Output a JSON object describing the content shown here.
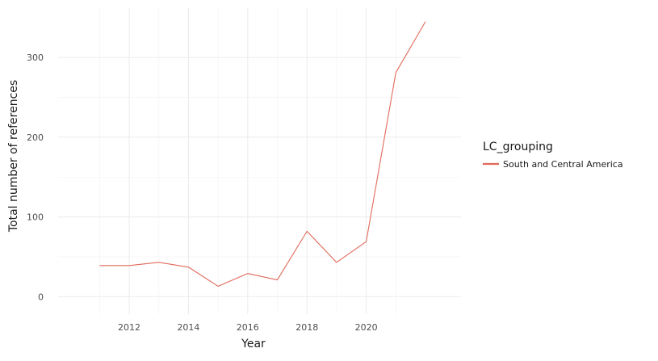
{
  "chart_data": {
    "type": "line",
    "title": "",
    "xlabel": "Year",
    "ylabel": "Total number of references",
    "x": [
      2011,
      2012,
      2013,
      2014,
      2015,
      2016,
      2017,
      2018,
      2019,
      2020,
      2021,
      2022
    ],
    "series": [
      {
        "name": "South and Central America",
        "color": "#E16A5B",
        "values": [
          39,
          39,
          43,
          37,
          13,
          29,
          21,
          82,
          43,
          69,
          281,
          345
        ]
      }
    ],
    "xlim": [
      2009.6,
      2023.2
    ],
    "ylim": [
      -22,
      362
    ],
    "x_ticks": [
      2012,
      2014,
      2016,
      2018,
      2020
    ],
    "y_ticks": [
      0,
      100,
      200,
      300
    ],
    "x_tick_labels": [
      "2012",
      "2014",
      "2016",
      "2018",
      "2020"
    ],
    "y_tick_labels": [
      "0",
      "100",
      "200",
      "300"
    ],
    "x_minor_ticks": [
      2011,
      2013,
      2015,
      2017,
      2019,
      2021
    ],
    "y_minor_ticks": [
      50,
      150,
      250
    ],
    "grid": true,
    "legend": {
      "title": "LC_grouping",
      "placement": "right"
    }
  }
}
